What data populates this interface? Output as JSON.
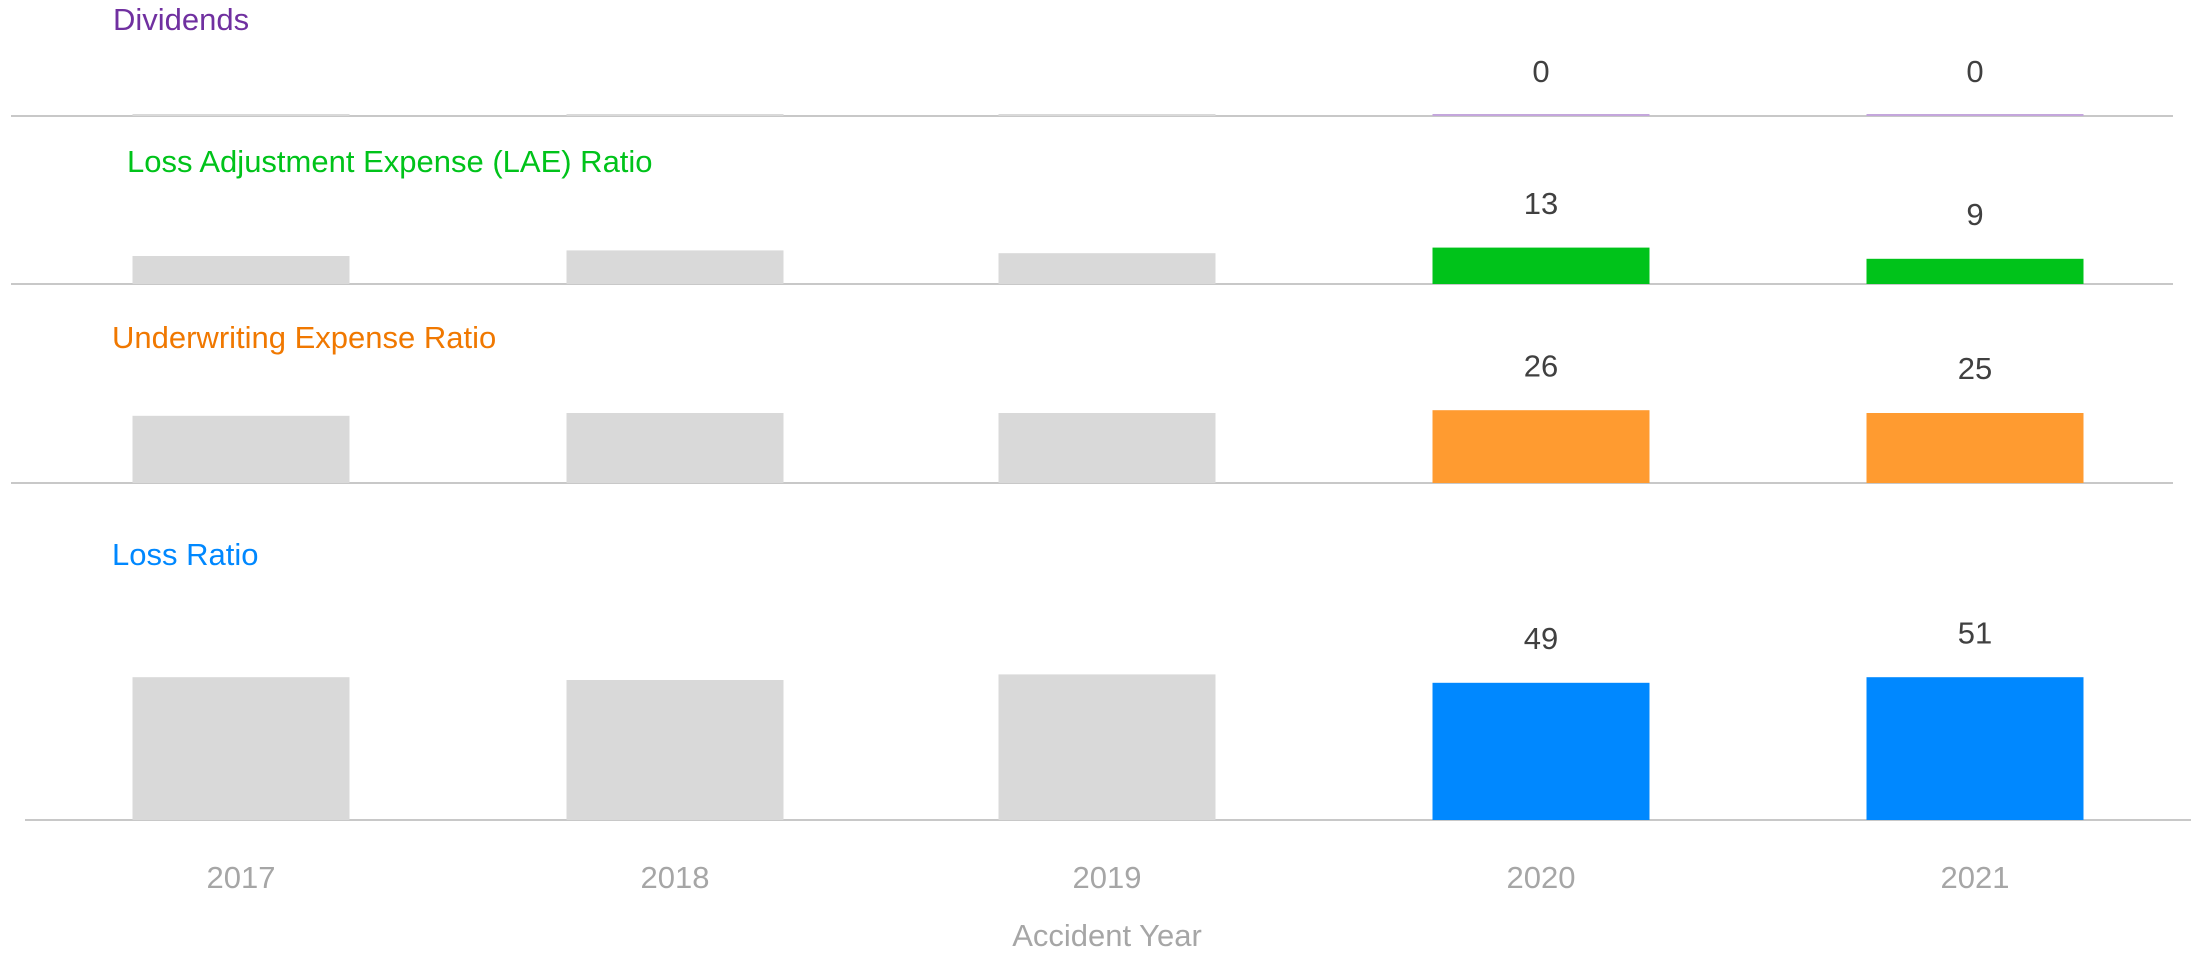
{
  "chart_data": [
    {
      "type": "bar",
      "title": "Dividends",
      "title_color": "#7030a0",
      "series": [
        {
          "color": "#d9d9d9",
          "values": [
            0,
            0,
            0,
            null,
            null
          ]
        },
        {
          "color": "#c4a6dc",
          "values": [
            null,
            null,
            null,
            0,
            0
          ],
          "data_labels": true
        }
      ]
    },
    {
      "type": "bar",
      "title": "Loss Adjustment Expense (LAE) Ratio",
      "title_color": "#00c31a",
      "series": [
        {
          "color": "#d9d9d9",
          "values": [
            10,
            12,
            11,
            null,
            null
          ]
        },
        {
          "color": "#00c31a",
          "values": [
            null,
            null,
            null,
            13,
            9
          ],
          "data_labels": true
        }
      ]
    },
    {
      "type": "bar",
      "title": "Underwriting Expense Ratio",
      "title_color": "#f07800",
      "series": [
        {
          "color": "#d9d9d9",
          "values": [
            24,
            25,
            25,
            null,
            null
          ]
        },
        {
          "color": "#ff9b30",
          "values": [
            null,
            null,
            null,
            26,
            25
          ],
          "data_labels": true
        }
      ]
    },
    {
      "type": "bar",
      "title": "Loss Ratio",
      "title_color": "#0088ff",
      "categories": [
        "2017",
        "2018",
        "2019",
        "2020",
        "2021"
      ],
      "xlabel": "Accident Year",
      "series": [
        {
          "color": "#d9d9d9",
          "values": [
            51,
            50,
            52,
            null,
            null
          ]
        },
        {
          "color": "#0088ff",
          "values": [
            null,
            null,
            null,
            49,
            51
          ],
          "data_labels": true
        }
      ]
    }
  ]
}
